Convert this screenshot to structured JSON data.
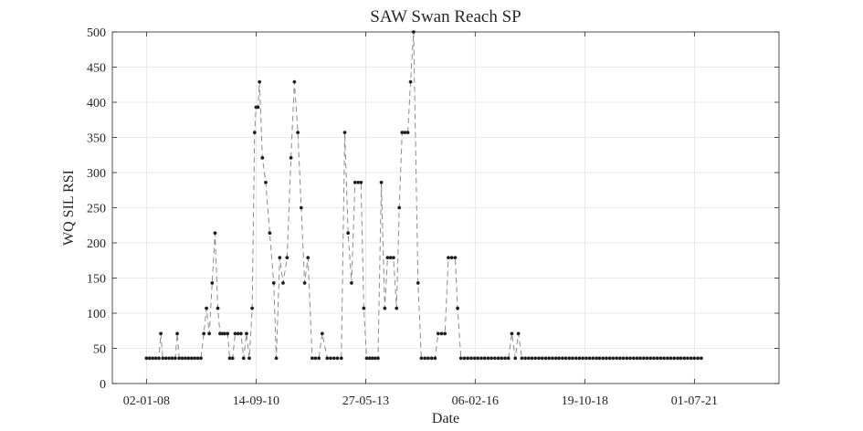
{
  "chart_data": {
    "type": "line",
    "title": "SAW Swan Reach SP",
    "xlabel": "Date",
    "ylabel": "WQ SIL RSI",
    "x_ticks": [
      "02-01-08",
      "14-09-10",
      "27-05-13",
      "06-02-16",
      "19-10-18",
      "01-07-21"
    ],
    "y_ticks": [
      "0",
      "50",
      "100",
      "150",
      "200",
      "250",
      "300",
      "350",
      "400",
      "450",
      "500"
    ],
    "xlim": [
      "2007-03-01",
      "2023-08-01"
    ],
    "ylim": [
      0,
      500
    ],
    "grid": true,
    "line_style": "dashed",
    "line_color": "#8c8c8c",
    "marker_color": "#1a1a1a",
    "series": [
      {
        "name": "",
        "points": [
          [
            "2008-01-02",
            36
          ],
          [
            "2008-01-30",
            36
          ],
          [
            "2008-02-27",
            36
          ],
          [
            "2008-03-26",
            36
          ],
          [
            "2008-04-23",
            36
          ],
          [
            "2008-05-10",
            71
          ],
          [
            "2008-05-28",
            36
          ],
          [
            "2008-06-25",
            36
          ],
          [
            "2008-07-23",
            36
          ],
          [
            "2008-08-20",
            36
          ],
          [
            "2008-09-17",
            36
          ],
          [
            "2008-10-05",
            71
          ],
          [
            "2008-10-22",
            36
          ],
          [
            "2008-11-19",
            36
          ],
          [
            "2008-12-17",
            36
          ],
          [
            "2009-01-14",
            36
          ],
          [
            "2009-02-11",
            36
          ],
          [
            "2009-03-11",
            36
          ],
          [
            "2009-04-08",
            36
          ],
          [
            "2009-05-06",
            36
          ],
          [
            "2009-06-01",
            71
          ],
          [
            "2009-06-25",
            107
          ],
          [
            "2009-07-20",
            71
          ],
          [
            "2009-08-15",
            143
          ],
          [
            "2009-09-10",
            214
          ],
          [
            "2009-10-05",
            107
          ],
          [
            "2009-10-25",
            71
          ],
          [
            "2009-11-15",
            71
          ],
          [
            "2009-12-05",
            71
          ],
          [
            "2010-01-01",
            71
          ],
          [
            "2010-01-20",
            36
          ],
          [
            "2010-02-15",
            36
          ],
          [
            "2010-03-10",
            71
          ],
          [
            "2010-04-05",
            71
          ],
          [
            "2010-05-01",
            71
          ],
          [
            "2010-05-25",
            36
          ],
          [
            "2010-06-20",
            71
          ],
          [
            "2010-07-15",
            36
          ],
          [
            "2010-08-10",
            107
          ],
          [
            "2010-09-01",
            357
          ],
          [
            "2010-09-14",
            393
          ],
          [
            "2010-10-01",
            393
          ],
          [
            "2010-10-15",
            429
          ],
          [
            "2010-11-10",
            321
          ],
          [
            "2010-12-10",
            286
          ],
          [
            "2011-01-15",
            214
          ],
          [
            "2011-02-20",
            143
          ],
          [
            "2011-03-15",
            36
          ],
          [
            "2011-04-15",
            179
          ],
          [
            "2011-05-15",
            143
          ],
          [
            "2011-06-20",
            179
          ],
          [
            "2011-07-25",
            321
          ],
          [
            "2011-08-25",
            429
          ],
          [
            "2011-09-25",
            357
          ],
          [
            "2011-10-25",
            250
          ],
          [
            "2011-11-25",
            143
          ],
          [
            "2011-12-25",
            179
          ],
          [
            "2012-02-01",
            36
          ],
          [
            "2012-03-01",
            36
          ],
          [
            "2012-04-01",
            36
          ],
          [
            "2012-05-01",
            71
          ],
          [
            "2012-06-15",
            36
          ],
          [
            "2012-07-15",
            36
          ],
          [
            "2012-08-15",
            36
          ],
          [
            "2012-09-15",
            36
          ],
          [
            "2012-10-20",
            36
          ],
          [
            "2012-11-20",
            357
          ],
          [
            "2012-12-20",
            214
          ],
          [
            "2013-01-20",
            143
          ],
          [
            "2013-02-20",
            286
          ],
          [
            "2013-03-20",
            286
          ],
          [
            "2013-04-15",
            286
          ],
          [
            "2013-05-10",
            107
          ],
          [
            "2013-06-05",
            36
          ],
          [
            "2013-07-01",
            36
          ],
          [
            "2013-07-25",
            36
          ],
          [
            "2013-08-20",
            36
          ],
          [
            "2013-09-15",
            36
          ],
          [
            "2013-10-15",
            286
          ],
          [
            "2013-11-15",
            107
          ],
          [
            "2013-12-10",
            179
          ],
          [
            "2014-01-05",
            179
          ],
          [
            "2014-02-01",
            179
          ],
          [
            "2014-03-01",
            107
          ],
          [
            "2014-03-25",
            250
          ],
          [
            "2014-04-20",
            357
          ],
          [
            "2014-05-15",
            357
          ],
          [
            "2014-06-10",
            357
          ],
          [
            "2014-07-05",
            429
          ],
          [
            "2014-08-01",
            500
          ],
          [
            "2014-09-10",
            143
          ],
          [
            "2014-10-10",
            36
          ],
          [
            "2014-11-10",
            36
          ],
          [
            "2014-12-10",
            36
          ],
          [
            "2015-01-10",
            36
          ],
          [
            "2015-02-10",
            36
          ],
          [
            "2015-03-10",
            71
          ],
          [
            "2015-04-10",
            71
          ],
          [
            "2015-05-10",
            71
          ],
          [
            "2015-06-10",
            179
          ],
          [
            "2015-07-10",
            179
          ],
          [
            "2015-08-10",
            179
          ],
          [
            "2015-09-01",
            107
          ],
          [
            "2015-10-01",
            36
          ],
          [
            "2015-11-01",
            36
          ],
          [
            "2015-12-01",
            36
          ],
          [
            "2016-01-01",
            36
          ],
          [
            "2016-02-01",
            36
          ],
          [
            "2016-03-01",
            36
          ],
          [
            "2016-04-01",
            36
          ],
          [
            "2016-05-01",
            36
          ],
          [
            "2016-06-01",
            36
          ],
          [
            "2016-07-01",
            36
          ],
          [
            "2016-08-01",
            36
          ],
          [
            "2016-09-01",
            36
          ],
          [
            "2016-10-01",
            36
          ],
          [
            "2016-11-01",
            36
          ],
          [
            "2016-12-01",
            36
          ],
          [
            "2017-01-01",
            71
          ],
          [
            "2017-02-01",
            36
          ],
          [
            "2017-03-01",
            71
          ],
          [
            "2017-04-01",
            36
          ],
          [
            "2017-05-01",
            36
          ],
          [
            "2017-06-01",
            36
          ],
          [
            "2017-07-01",
            36
          ],
          [
            "2017-08-01",
            36
          ],
          [
            "2017-09-01",
            36
          ],
          [
            "2017-10-01",
            36
          ],
          [
            "2017-11-01",
            36
          ],
          [
            "2017-12-01",
            36
          ],
          [
            "2018-01-01",
            36
          ],
          [
            "2018-02-01",
            36
          ],
          [
            "2018-03-01",
            36
          ],
          [
            "2018-04-01",
            36
          ],
          [
            "2018-05-01",
            36
          ],
          [
            "2018-06-01",
            36
          ],
          [
            "2018-07-01",
            36
          ],
          [
            "2018-08-01",
            36
          ],
          [
            "2018-09-01",
            36
          ],
          [
            "2018-10-01",
            36
          ],
          [
            "2018-11-01",
            36
          ],
          [
            "2018-12-01",
            36
          ],
          [
            "2019-01-01",
            36
          ],
          [
            "2019-02-01",
            36
          ],
          [
            "2019-03-01",
            36
          ],
          [
            "2019-04-01",
            36
          ],
          [
            "2019-05-01",
            36
          ],
          [
            "2019-06-01",
            36
          ],
          [
            "2019-07-01",
            36
          ],
          [
            "2019-08-01",
            36
          ],
          [
            "2019-09-01",
            36
          ],
          [
            "2019-10-01",
            36
          ],
          [
            "2019-11-01",
            36
          ],
          [
            "2019-12-01",
            36
          ],
          [
            "2020-01-01",
            36
          ],
          [
            "2020-02-01",
            36
          ],
          [
            "2020-03-01",
            36
          ],
          [
            "2020-04-01",
            36
          ],
          [
            "2020-05-01",
            36
          ],
          [
            "2020-06-01",
            36
          ],
          [
            "2020-07-01",
            36
          ],
          [
            "2020-08-01",
            36
          ],
          [
            "2020-09-01",
            36
          ],
          [
            "2020-10-01",
            36
          ],
          [
            "2020-11-01",
            36
          ],
          [
            "2020-12-01",
            36
          ],
          [
            "2021-01-01",
            36
          ],
          [
            "2021-02-01",
            36
          ],
          [
            "2021-03-01",
            36
          ],
          [
            "2021-04-01",
            36
          ],
          [
            "2021-05-01",
            36
          ],
          [
            "2021-06-01",
            36
          ],
          [
            "2021-07-01",
            36
          ],
          [
            "2021-08-01",
            36
          ],
          [
            "2021-09-01",
            36
          ]
        ]
      }
    ]
  }
}
